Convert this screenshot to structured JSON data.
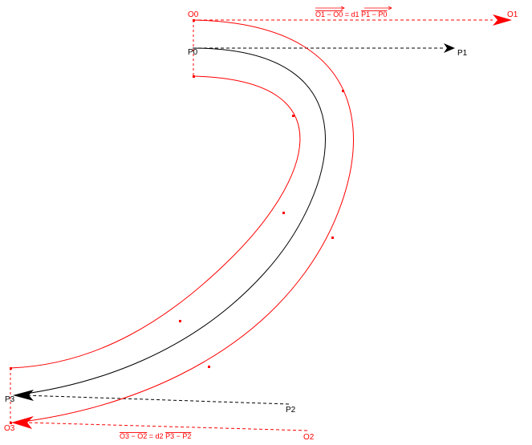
{
  "labels": {
    "o0": "O0",
    "o1": "O1",
    "o2": "O2",
    "o3": "O3",
    "p0": "P0",
    "p1": "P1",
    "p2": "P2",
    "p3": "P3"
  },
  "equations": {
    "top": {
      "lhs": "O1 − O0",
      "mid": " = d1 ",
      "rhs": "P1 − P0"
    },
    "bottom": {
      "lhs": "O3 − O2",
      "mid": " = d2 ",
      "rhs": "P3 − P2"
    }
  },
  "colors": {
    "offset": "#ff0000",
    "curve": "#000000"
  }
}
